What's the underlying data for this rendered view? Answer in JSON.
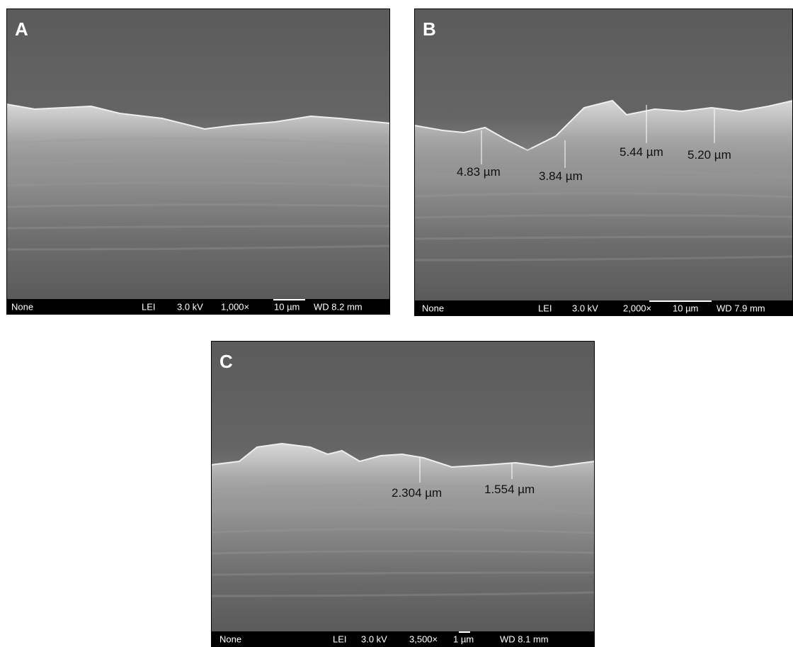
{
  "panels": [
    {
      "label": "A",
      "footer": [
        "None",
        "LEI",
        "3.0 kV",
        "1,000×",
        "10 µm",
        "WD 8.2 mm"
      ]
    },
    {
      "label": "B",
      "footer": [
        "None",
        "LEI",
        "3.0 kV",
        "2,000×",
        "10 µm",
        "WD 7.9 mm"
      ],
      "measurements": [
        "4.83 µm",
        "3.84 µm",
        "5.44 µm",
        "5.20 µm"
      ]
    },
    {
      "label": "C",
      "footer": [
        "None",
        "LEI",
        "3.0 kV",
        "3,500×",
        "1 µm",
        "WD 8.1 mm"
      ],
      "measurements": [
        "2.304 µm",
        "1.554 µm"
      ]
    }
  ]
}
